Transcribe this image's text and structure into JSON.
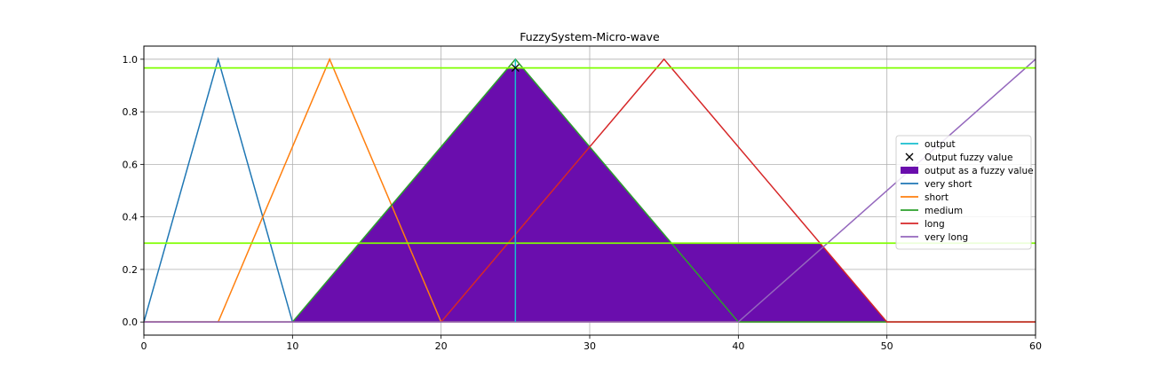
{
  "chart_data": {
    "type": "line",
    "title": "FuzzySystem-Micro-wave",
    "xlabel": "",
    "ylabel": "",
    "xlim": [
      0,
      60
    ],
    "ylim": [
      -0.05,
      1.05
    ],
    "x_ticks": [
      0,
      10,
      20,
      30,
      40,
      50,
      60
    ],
    "y_ticks": [
      0.0,
      0.2,
      0.4,
      0.6,
      0.8,
      1.0
    ],
    "x_tick_labels": [
      "0",
      "10",
      "20",
      "30",
      "40",
      "50",
      "60"
    ],
    "y_tick_labels": [
      "0.0",
      "0.2",
      "0.4",
      "0.6",
      "0.8",
      "1.0"
    ],
    "grid": true,
    "legend_position": "right",
    "membership_functions": [
      {
        "name": "very short",
        "color": "#1f77b4",
        "points": [
          [
            0,
            0
          ],
          [
            5,
            1
          ],
          [
            10,
            0
          ],
          [
            60,
            0
          ]
        ]
      },
      {
        "name": "short",
        "color": "#ff7f0e",
        "points": [
          [
            0,
            0
          ],
          [
            5,
            0
          ],
          [
            12.5,
            1
          ],
          [
            20,
            0
          ],
          [
            60,
            0
          ]
        ]
      },
      {
        "name": "medium",
        "color": "#2ca02c",
        "points": [
          [
            0,
            0
          ],
          [
            10,
            0
          ],
          [
            25,
            1
          ],
          [
            40,
            0
          ],
          [
            60,
            0
          ]
        ]
      },
      {
        "name": "long",
        "color": "#d62728",
        "points": [
          [
            0,
            0
          ],
          [
            20,
            0
          ],
          [
            35,
            1
          ],
          [
            50,
            0
          ],
          [
            60,
            0
          ]
        ]
      },
      {
        "name": "very long",
        "color": "#9467bd",
        "points": [
          [
            0,
            0
          ],
          [
            40,
            0
          ],
          [
            60,
            1
          ]
        ]
      }
    ],
    "output_fuzzy_area": {
      "name": "output as a fuzzy value",
      "color": "#6a0dad",
      "points": [
        [
          10,
          0
        ],
        [
          24.5,
          0.967
        ],
        [
          25.5,
          0.967
        ],
        [
          35.5,
          0.3
        ],
        [
          45.5,
          0.3
        ],
        [
          50,
          0
        ]
      ]
    },
    "activation_levels": {
      "color": "#7fff00",
      "values": [
        0.967,
        0.3
      ]
    },
    "output": {
      "name": "output",
      "color": "#17becf",
      "x": 25
    },
    "output_fuzzy_value": {
      "name": "Output fuzzy value",
      "x": 25,
      "y": 0.967,
      "marker": "x"
    },
    "legend": [
      {
        "label": "output",
        "kind": "line",
        "color": "#17becf"
      },
      {
        "label": "Output fuzzy value",
        "kind": "marker-x",
        "color": "#000000"
      },
      {
        "label": "output as a fuzzy value",
        "kind": "patch",
        "color": "#6a0dad"
      },
      {
        "label": "very short",
        "kind": "line",
        "color": "#1f77b4"
      },
      {
        "label": "short",
        "kind": "line",
        "color": "#ff7f0e"
      },
      {
        "label": "medium",
        "kind": "line",
        "color": "#2ca02c"
      },
      {
        "label": "long",
        "kind": "line",
        "color": "#d62728"
      },
      {
        "label": "very long",
        "kind": "line",
        "color": "#9467bd"
      }
    ]
  }
}
